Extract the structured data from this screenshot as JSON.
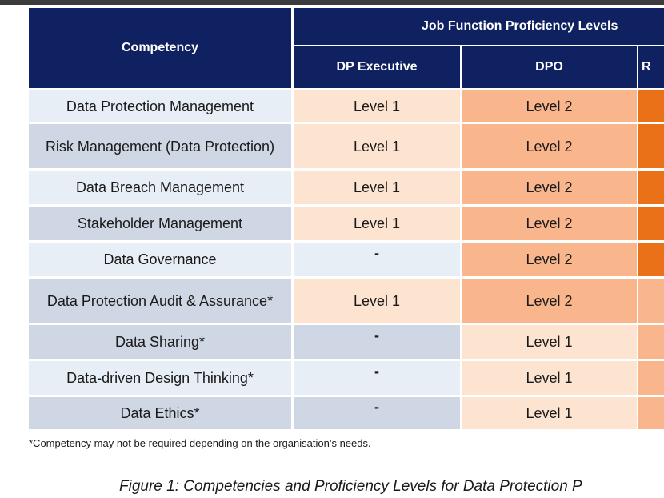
{
  "header": {
    "competency": "Competency",
    "group": "Job Function Proficiency Levels",
    "dp_executive": "DP Executive",
    "dpo": "DPO",
    "third_cut": "R"
  },
  "rows": [
    {
      "competency": "Data Protection Management",
      "dp_executive": "Level 1",
      "dpo": "Level 2"
    },
    {
      "competency": "Risk Management (Data Protection)",
      "dp_executive": "Level 1",
      "dpo": "Level 2"
    },
    {
      "competency": "Data Breach Management",
      "dp_executive": "Level 1",
      "dpo": "Level 2"
    },
    {
      "competency": "Stakeholder Management",
      "dp_executive": "Level 1",
      "dpo": "Level 2"
    },
    {
      "competency": "Data Governance",
      "dp_executive": "-",
      "dpo": "Level 2"
    },
    {
      "competency": "Data Protection Audit & Assurance*",
      "dp_executive": "Level 1",
      "dpo": "Level 2"
    },
    {
      "competency": "Data Sharing*",
      "dp_executive": "-",
      "dpo": "Level 1"
    },
    {
      "competency": "Data-driven Design Thinking*",
      "dp_executive": "-",
      "dpo": "Level 1"
    },
    {
      "competency": "Data Ethics*",
      "dp_executive": "-",
      "dpo": "Level 1"
    }
  ],
  "footnote": "*Competency may not be required depending on the organisation’s needs.",
  "caption": "Figure 1: Competencies and Proficiency Levels for Data Protection P",
  "colors": {
    "header_bg": "#0f2160",
    "level1": "#fde4d1",
    "level2": "#f9b58b",
    "level3": "#ea7117",
    "competency_light": "#e8eef5",
    "competency_dark": "#cfd7e4"
  }
}
